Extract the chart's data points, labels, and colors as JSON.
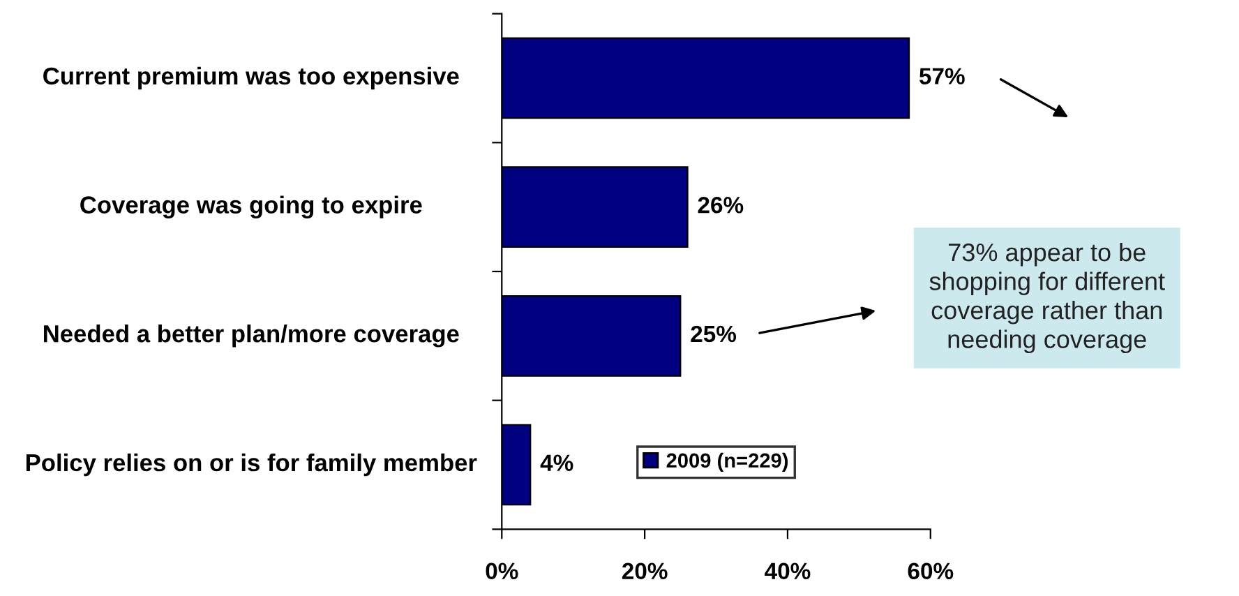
{
  "chart_data": {
    "type": "bar",
    "orientation": "horizontal",
    "categories": [
      "Current premium was too expensive",
      "Coverage was going to expire",
      "Needed a better plan/more coverage",
      "Policy relies on or is for family member"
    ],
    "series": [
      {
        "name": "2009 (n=229)",
        "color": "#000080",
        "values": [
          57,
          26,
          25,
          4
        ],
        "value_labels": [
          "57%",
          "26%",
          "25%",
          "4%"
        ]
      }
    ],
    "xlim": [
      0,
      60
    ],
    "xticks": [
      {
        "value": 0,
        "label": "0%"
      },
      {
        "value": 20,
        "label": "20%"
      },
      {
        "value": 40,
        "label": "40%"
      },
      {
        "value": 60,
        "label": "60%"
      }
    ],
    "legend": "bottom",
    "grid": false,
    "annotations": [
      "73% appear to be shopping for different coverage rather than needing coverage"
    ]
  }
}
